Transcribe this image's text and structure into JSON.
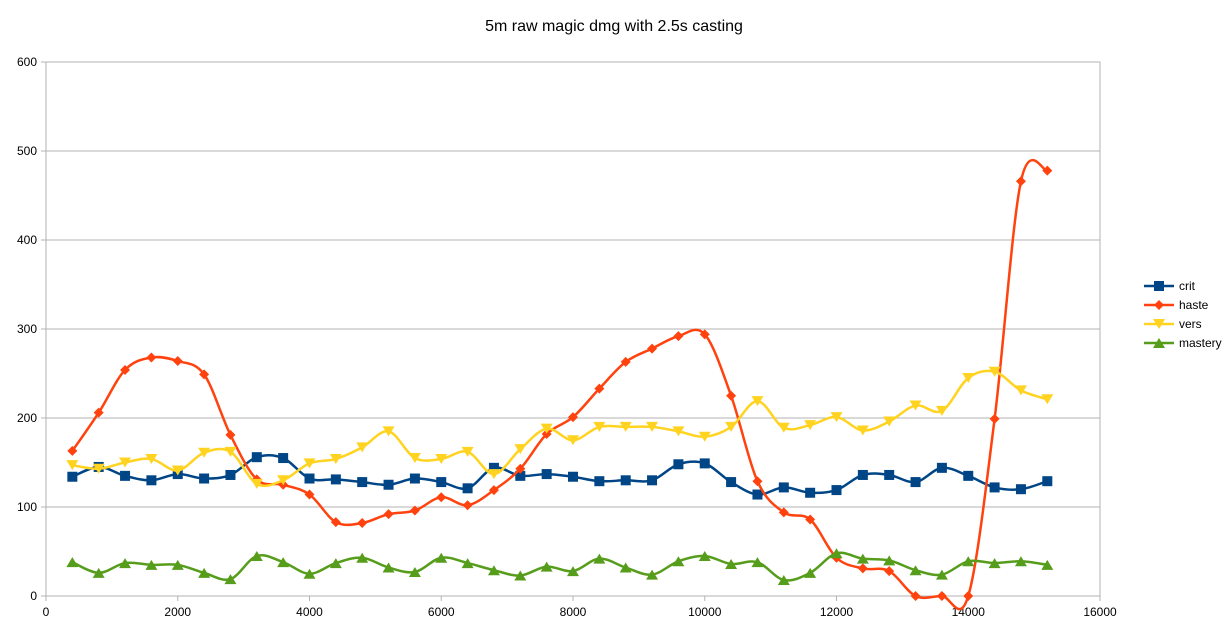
{
  "chart_data": {
    "type": "line",
    "title": "5m raw magic dmg with 2.5s casting",
    "xlabel": "",
    "ylabel": "",
    "xlim": [
      0,
      16000
    ],
    "ylim": [
      0,
      600
    ],
    "x_ticks": [
      0,
      2000,
      4000,
      6000,
      8000,
      10000,
      12000,
      14000,
      16000
    ],
    "y_ticks": [
      0,
      100,
      200,
      300,
      400,
      500,
      600
    ],
    "x_tick_labels": [
      "0",
      "2000",
      "4000",
      "6000",
      "8000",
      "10000",
      "12000",
      "14000",
      "16000"
    ],
    "y_tick_labels": [
      "0",
      "100",
      "200",
      "300",
      "400",
      "500",
      "600"
    ],
    "grid": "horizontal",
    "legend_position": "right",
    "smooth": true,
    "x": [
      400,
      800,
      1200,
      1600,
      2000,
      2400,
      2800,
      3200,
      3600,
      4000,
      4400,
      4800,
      5200,
      5600,
      6000,
      6400,
      6800,
      7200,
      7600,
      8000,
      8400,
      8800,
      9200,
      9600,
      10000,
      10400,
      10800,
      11200,
      11600,
      12000,
      12400,
      12800,
      13200,
      13600,
      14000,
      14400,
      14800,
      15200
    ],
    "series": [
      {
        "name": "crit",
        "color": "#004586",
        "marker": "square",
        "values": [
          134,
          145,
          135,
          130,
          137,
          132,
          136,
          156,
          155,
          132,
          131,
          128,
          125,
          132,
          128,
          121,
          144,
          135,
          137,
          134,
          129,
          130,
          130,
          148,
          149,
          128,
          114,
          122,
          116,
          119,
          136,
          136,
          128,
          144,
          135,
          122,
          120,
          129
        ]
      },
      {
        "name": "haste",
        "color": "#ff420e",
        "marker": "diamond",
        "values": [
          163,
          206,
          254,
          268,
          264,
          249,
          181,
          131,
          125,
          114,
          83,
          82,
          92,
          96,
          111,
          102,
          119,
          143,
          182,
          201,
          233,
          263,
          278,
          292,
          294,
          225,
          129,
          94,
          86,
          43,
          31,
          28,
          0,
          0,
          0,
          199,
          466,
          478
        ]
      },
      {
        "name": "vers",
        "color": "#ffd320",
        "marker": "triangle-down",
        "values": [
          147,
          143,
          150,
          154,
          141,
          161,
          162,
          126,
          130,
          149,
          154,
          167,
          185,
          155,
          154,
          162,
          137,
          165,
          188,
          175,
          190,
          190,
          190,
          185,
          179,
          190,
          219,
          189,
          192,
          201,
          186,
          196,
          214,
          208,
          245,
          252,
          231,
          221
        ]
      },
      {
        "name": "mastery",
        "color": "#579d1c",
        "marker": "triangle-up",
        "values": [
          38,
          26,
          37,
          35,
          35,
          26,
          19,
          45,
          38,
          25,
          37,
          43,
          32,
          27,
          43,
          37,
          29,
          23,
          33,
          28,
          42,
          32,
          24,
          39,
          45,
          36,
          38,
          18,
          26,
          48,
          42,
          40,
          29,
          24,
          39,
          37,
          39,
          35
        ]
      }
    ]
  }
}
